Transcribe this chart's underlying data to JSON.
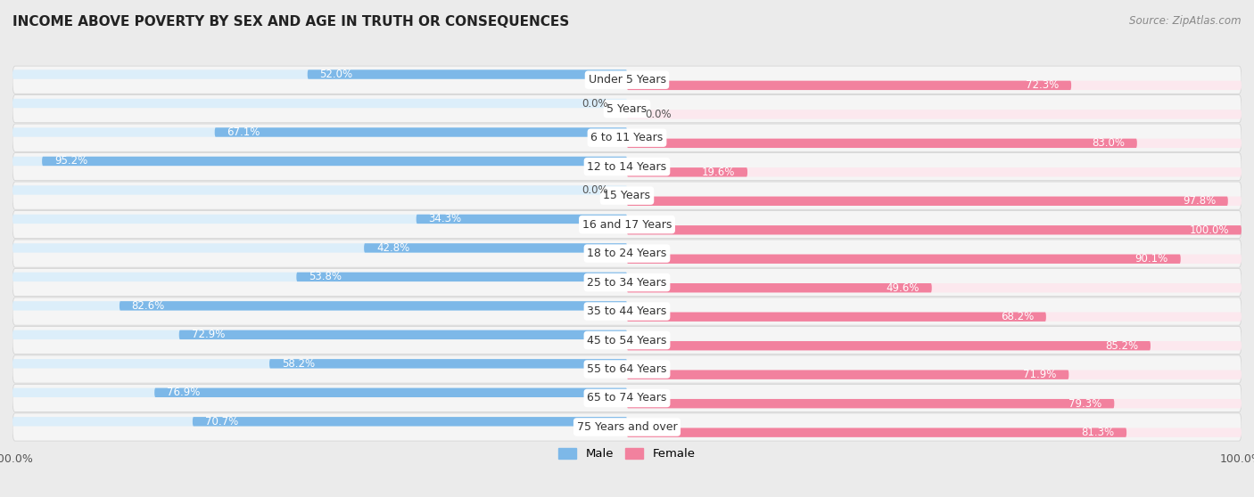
{
  "title": "INCOME ABOVE POVERTY BY SEX AND AGE IN TRUTH OR CONSEQUENCES",
  "source": "Source: ZipAtlas.com",
  "categories": [
    "Under 5 Years",
    "5 Years",
    "6 to 11 Years",
    "12 to 14 Years",
    "15 Years",
    "16 and 17 Years",
    "18 to 24 Years",
    "25 to 34 Years",
    "35 to 44 Years",
    "45 to 54 Years",
    "55 to 64 Years",
    "65 to 74 Years",
    "75 Years and over"
  ],
  "male_values": [
    52.0,
    0.0,
    67.1,
    95.2,
    0.0,
    34.3,
    42.8,
    53.8,
    82.6,
    72.9,
    58.2,
    76.9,
    70.7
  ],
  "female_values": [
    72.3,
    0.0,
    83.0,
    19.6,
    97.8,
    100.0,
    90.1,
    49.6,
    68.2,
    85.2,
    71.9,
    79.3,
    81.3
  ],
  "male_color": "#7db8e8",
  "female_color": "#f2819e",
  "male_color_light": "#c5dff4",
  "female_color_light": "#f9c5d2",
  "male_label": "Male",
  "female_label": "Female",
  "background_color": "#ebebeb",
  "row_background": "#f5f5f5",
  "bar_background_male": "#dceefa",
  "bar_background_female": "#fce8ee",
  "title_fontsize": 11,
  "source_fontsize": 8.5,
  "value_fontsize": 8.5,
  "cat_fontsize": 9
}
